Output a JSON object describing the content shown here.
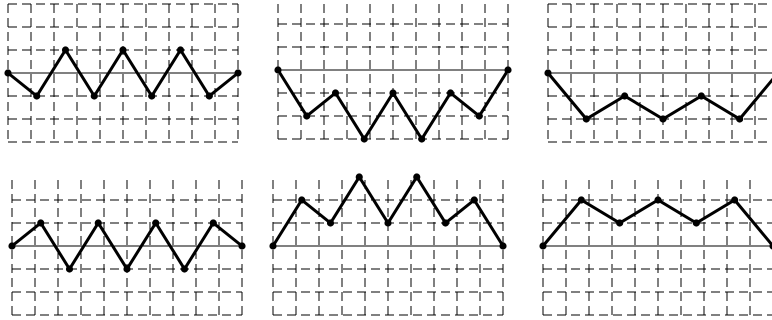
{
  "panels": [
    {
      "id": "a",
      "heights": [
        0,
        -1,
        1,
        -1,
        1,
        -1,
        1,
        -1,
        0
      ]
    },
    {
      "id": "b",
      "heights": [
        0,
        -2,
        -1,
        -3,
        -1,
        -3,
        -1,
        -2,
        0
      ]
    },
    {
      "id": "c",
      "heights": [
        0,
        -2,
        -1,
        -2,
        -1,
        -2,
        0
      ]
    },
    {
      "id": "d",
      "heights": [
        0,
        1,
        -1,
        1,
        -1,
        1,
        -1,
        1,
        0
      ]
    },
    {
      "id": "e",
      "heights": [
        0,
        2,
        1,
        3,
        1,
        3,
        1,
        2,
        0
      ]
    },
    {
      "id": "f",
      "heights": [
        0,
        2,
        1,
        2,
        1,
        2,
        0
      ]
    }
  ]
}
